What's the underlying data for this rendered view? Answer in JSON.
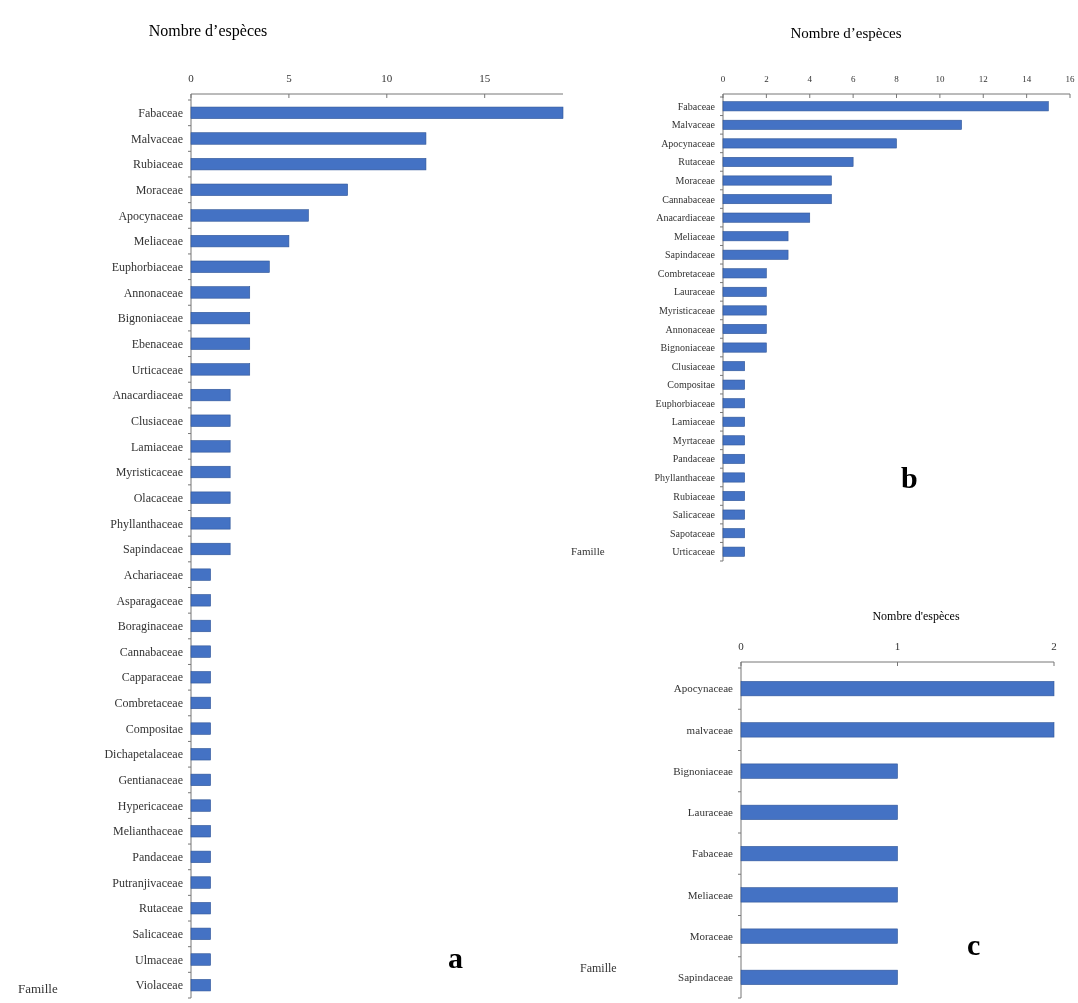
{
  "chart_data": [
    {
      "type": "bar",
      "orientation": "horizontal",
      "xlabel": "Nombre d’espèces",
      "ylabel": "Famille",
      "annotations": [
        "a"
      ],
      "categories": [
        "Fabaceae",
        "Malvaceae",
        "Rubiaceae",
        "Moraceae",
        "Apocynaceae",
        "Meliaceae",
        "Euphorbiaceae",
        "Annonaceae",
        "Bignoniaceae",
        "Ebenaceae",
        "Urticaceae",
        "Anacardiaceae",
        "Clusiaceae",
        "Lamiaceae",
        "Myristicaceae",
        "Olacaceae",
        "Phyllanthaceae",
        "Sapindaceae",
        "Achariaceae",
        "Asparagaceae",
        "Boraginaceae",
        "Cannabaceae",
        "Capparaceae",
        "Combretaceae",
        "Compositae",
        "Dichapetalaceae",
        "Gentianaceae",
        "Hypericaceae",
        "Melianthaceae",
        "Pandaceae",
        "Putranjivaceae",
        "Rutaceae",
        "Salicaceae",
        "Ulmaceae",
        "Violaceae"
      ],
      "values": [
        19,
        12,
        12,
        8,
        6,
        5,
        4,
        3,
        3,
        3,
        3,
        2,
        2,
        2,
        2,
        2,
        2,
        2,
        1,
        1,
        1,
        1,
        1,
        1,
        1,
        1,
        1,
        1,
        1,
        1,
        1,
        1,
        1,
        1,
        1
      ],
      "color": "#4472c4",
      "xlim": [
        0,
        19
      ],
      "xticks": [
        0,
        5,
        10,
        15
      ]
    },
    {
      "type": "bar",
      "orientation": "horizontal",
      "xlabel": "Nombre d’espèces",
      "ylabel": "Famille",
      "annotations": [
        "b"
      ],
      "categories": [
        "Fabaceae",
        "Malvaceae",
        "Apocynaceae",
        "Rutaceae",
        "Moraceae",
        "Cannabaceae",
        "Anacardiaceae",
        "Meliaceae",
        "Sapindaceae",
        "Combretaceae",
        "Lauraceae",
        "Myristicaceae",
        "Annonaceae",
        "Bignoniaceae",
        "Clusiaceae",
        "Compositae",
        "Euphorbiaceae",
        "Lamiaceae",
        "Myrtaceae",
        "Pandaceae",
        "Phyllanthaceae",
        "Rubiaceae",
        "Salicaceae",
        "Sapotaceae",
        "Urticaceae"
      ],
      "values": [
        15,
        11,
        8,
        6,
        5,
        5,
        4,
        3,
        3,
        2,
        2,
        2,
        2,
        2,
        1,
        1,
        1,
        1,
        1,
        1,
        1,
        1,
        1,
        1,
        1
      ],
      "color": "#4472c4",
      "xlim": [
        0,
        16
      ],
      "xticks": [
        0,
        2,
        4,
        6,
        8,
        10,
        12,
        14,
        16
      ]
    },
    {
      "type": "bar",
      "orientation": "horizontal",
      "xlabel": "Nombre d'espèces",
      "ylabel": "Famille",
      "annotations": [
        "c"
      ],
      "categories": [
        "Apocynaceae",
        "malvaceae",
        "Bignoniaceae",
        "Lauraceae",
        "Fabaceae",
        "Meliaceae",
        "Moraceae",
        "Sapindaceae"
      ],
      "values": [
        2,
        2,
        1,
        1,
        1,
        1,
        1,
        1
      ],
      "color": "#4472c4",
      "xlim": [
        0,
        2
      ],
      "xticks": [
        0,
        1,
        2
      ]
    }
  ]
}
